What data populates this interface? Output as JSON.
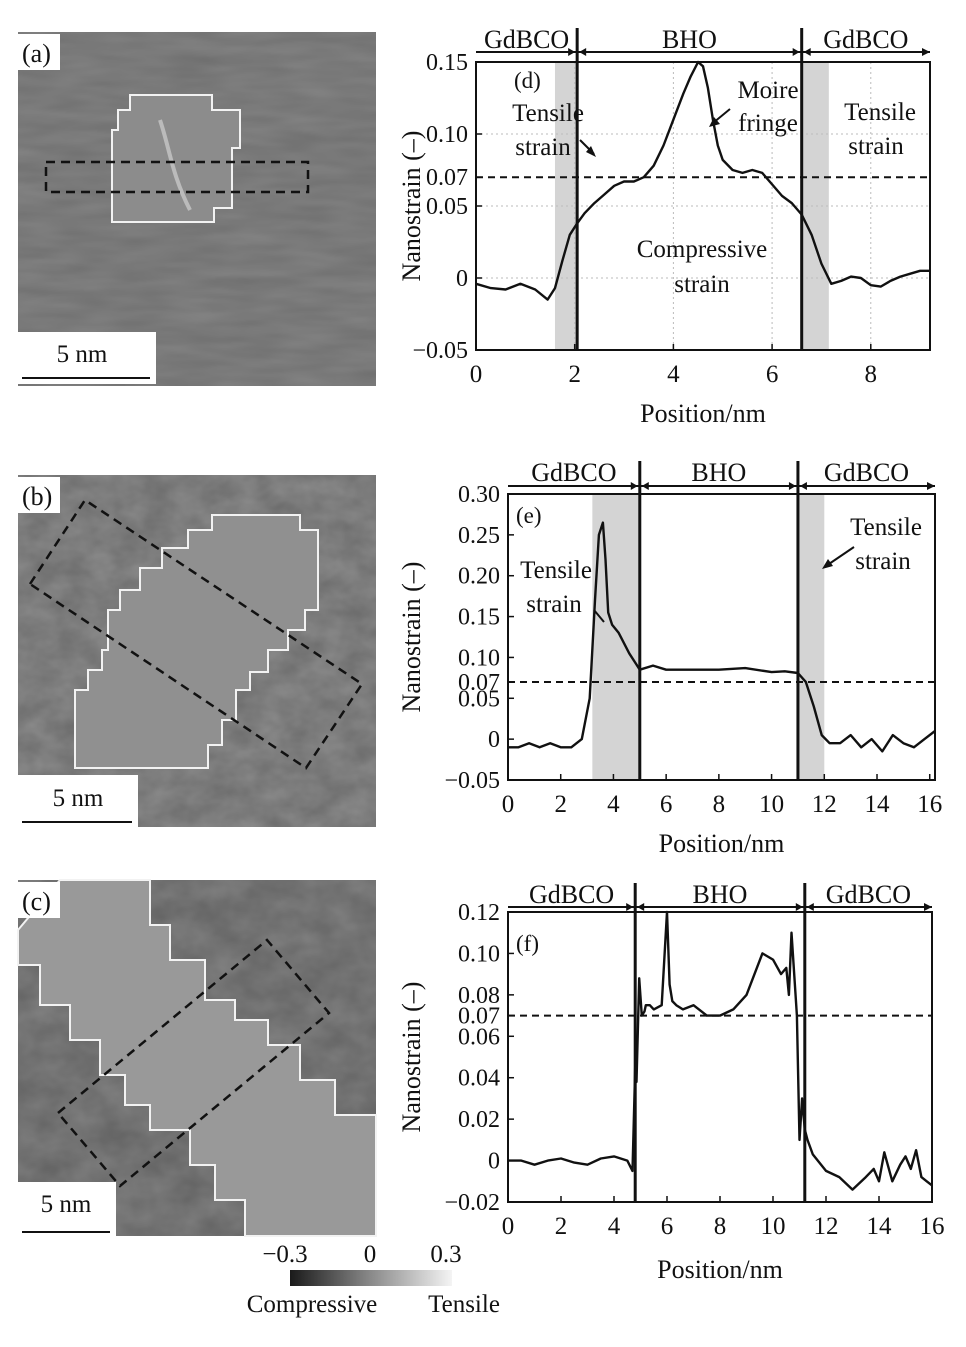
{
  "panel_labels": {
    "a": "(a)",
    "b": "(b)",
    "c": "(c)",
    "d": "(d)",
    "e": "(e)",
    "f": "(f)"
  },
  "scale_bar_label": "5 nm",
  "colorbar": {
    "ticks": [
      "−0.3",
      "0",
      "0.3"
    ],
    "left_label": "Compressive",
    "right_label": "Tensile"
  },
  "chart_data": [
    {
      "type": "line",
      "panel": "(d)",
      "xlabel": "Position/nm",
      "ylabel": "Nanostrain (–)",
      "xlim": [
        0,
        9.2
      ],
      "ylim": [
        -0.05,
        0.15
      ],
      "xticks": [
        0,
        2,
        4,
        6,
        8
      ],
      "yticks": [
        {
          "v": -0.05,
          "t": "−0.05"
        },
        {
          "v": 0,
          "t": "0"
        },
        {
          "v": 0.05,
          "t": "0.05"
        },
        {
          "v": 0.07,
          "t": "0.07"
        },
        {
          "v": 0.1,
          "t": "0.10"
        },
        {
          "v": 0.15,
          "t": "0.15"
        }
      ],
      "grid": true,
      "threshold": 0.07,
      "interfaces": [
        2.05,
        6.6
      ],
      "shaded": [
        [
          1.6,
          2.05
        ],
        [
          6.6,
          7.15
        ]
      ],
      "regions": [
        "GdBCO",
        "BHO",
        "GdBCO"
      ],
      "annotations": [
        "Tensile strain",
        "Moire fringe",
        "Tensile strain",
        "Compressive strain"
      ],
      "series": [
        {
          "x": [
            0,
            0.3,
            0.6,
            0.9,
            1.2,
            1.45,
            1.6,
            1.75,
            1.9,
            2.05,
            2.2,
            2.4,
            2.6,
            2.8,
            3.0,
            3.2,
            3.4,
            3.6,
            3.8,
            4.0,
            4.2,
            4.35,
            4.5,
            4.6,
            4.7,
            4.8,
            4.9,
            5.0,
            5.2,
            5.4,
            5.6,
            5.8,
            6.0,
            6.2,
            6.4,
            6.6,
            6.8,
            7.0,
            7.2,
            7.4,
            7.6,
            7.8,
            8.0,
            8.2,
            8.4,
            8.6,
            8.8,
            9.0,
            9.2
          ],
          "y": [
            -0.004,
            -0.007,
            -0.008,
            -0.004,
            -0.008,
            -0.015,
            -0.007,
            0.012,
            0.03,
            0.038,
            0.045,
            0.052,
            0.058,
            0.064,
            0.067,
            0.067,
            0.07,
            0.078,
            0.092,
            0.11,
            0.128,
            0.14,
            0.15,
            0.147,
            0.132,
            0.11,
            0.092,
            0.082,
            0.075,
            0.073,
            0.075,
            0.073,
            0.065,
            0.057,
            0.052,
            0.044,
            0.03,
            0.01,
            -0.004,
            -0.002,
            0.001,
            0.0,
            -0.005,
            -0.006,
            -0.002,
            0.001,
            0.003,
            0.005,
            0.005
          ]
        }
      ]
    },
    {
      "type": "line",
      "panel": "(e)",
      "xlabel": "Position/nm",
      "ylabel": "Nanostrain (–)",
      "xlim": [
        0,
        16.2
      ],
      "ylim": [
        -0.05,
        0.3
      ],
      "xticks": [
        0,
        2,
        4,
        6,
        8,
        10,
        12,
        14,
        16
      ],
      "yticks": [
        {
          "v": -0.05,
          "t": "−0.05"
        },
        {
          "v": 0,
          "t": "0"
        },
        {
          "v": 0.05,
          "t": "0.05"
        },
        {
          "v": 0.07,
          "t": "0.07"
        },
        {
          "v": 0.1,
          "t": "0.10"
        },
        {
          "v": 0.15,
          "t": "0.15"
        },
        {
          "v": 0.2,
          "t": "0.20"
        },
        {
          "v": 0.25,
          "t": "0.25"
        },
        {
          "v": 0.3,
          "t": "0.30"
        }
      ],
      "grid": false,
      "threshold": 0.07,
      "interfaces": [
        5.0,
        11.0
      ],
      "shaded": [
        [
          3.2,
          5.0
        ],
        [
          11.0,
          12.0
        ]
      ],
      "regions": [
        "GdBCO",
        "BHO",
        "GdBCO"
      ],
      "annotations": [
        "Tensile strain",
        "Tensile strain"
      ],
      "series": [
        {
          "x": [
            0,
            0.4,
            0.8,
            1.2,
            1.6,
            2.0,
            2.4,
            2.8,
            3.1,
            3.3,
            3.45,
            3.6,
            3.7,
            3.8,
            3.95,
            4.2,
            4.6,
            5.0,
            5.5,
            6.0,
            6.5,
            7.0,
            8.0,
            9.0,
            10.0,
            10.5,
            11.0,
            11.3,
            11.6,
            11.9,
            12.2,
            12.6,
            13.0,
            13.4,
            13.8,
            14.2,
            14.6,
            15.0,
            15.4,
            15.8,
            16.2
          ],
          "y": [
            -0.01,
            -0.01,
            -0.005,
            -0.01,
            -0.005,
            -0.01,
            -0.01,
            0.0,
            0.05,
            0.17,
            0.25,
            0.265,
            0.22,
            0.155,
            0.14,
            0.13,
            0.105,
            0.085,
            0.09,
            0.085,
            0.085,
            0.085,
            0.085,
            0.087,
            0.082,
            0.083,
            0.081,
            0.07,
            0.04,
            0.005,
            -0.005,
            -0.005,
            0.005,
            -0.01,
            0.0,
            -0.015,
            0.005,
            -0.005,
            -0.01,
            0.0,
            0.01
          ]
        }
      ]
    },
    {
      "type": "line",
      "panel": "(f)",
      "xlabel": "Position/nm",
      "ylabel": "Nanostrain (–)",
      "xlim": [
        0,
        16
      ],
      "ylim": [
        -0.02,
        0.12
      ],
      "xticks": [
        0,
        2,
        4,
        6,
        8,
        10,
        12,
        14,
        16
      ],
      "yticks": [
        {
          "v": -0.02,
          "t": "−0.02"
        },
        {
          "v": 0,
          "t": "0"
        },
        {
          "v": 0.02,
          "t": "0.02"
        },
        {
          "v": 0.04,
          "t": "0.04"
        },
        {
          "v": 0.06,
          "t": "0.06"
        },
        {
          "v": 0.07,
          "t": "0.07"
        },
        {
          "v": 0.08,
          "t": "0.08"
        },
        {
          "v": 0.1,
          "t": "0.10"
        },
        {
          "v": 0.12,
          "t": "0.12"
        }
      ],
      "grid": false,
      "threshold": 0.07,
      "interfaces": [
        4.8,
        11.2
      ],
      "shaded": [],
      "regions": [
        "GdBCO",
        "BHO",
        "GdBCO"
      ],
      "annotations": [],
      "series": [
        {
          "x": [
            0,
            0.5,
            1.0,
            1.5,
            2.0,
            2.5,
            3.0,
            3.5,
            4.0,
            4.5,
            4.7,
            4.8,
            4.85,
            4.95,
            5.05,
            5.15,
            5.2,
            5.35,
            5.5,
            5.8,
            6.0,
            6.1,
            6.2,
            6.35,
            6.6,
            7.0,
            7.5,
            8.0,
            8.5,
            9.0,
            9.3,
            9.6,
            10.0,
            10.3,
            10.5,
            10.6,
            10.7,
            10.8,
            10.9,
            11.0,
            11.1,
            11.2,
            11.3,
            11.5,
            12.0,
            12.5,
            13.0,
            13.5,
            13.8,
            14.0,
            14.2,
            14.5,
            14.8,
            15.0,
            15.2,
            15.4,
            15.6,
            15.8,
            16.0
          ],
          "y": [
            0.0,
            0.0,
            -0.002,
            0.0,
            0.001,
            -0.001,
            -0.002,
            0.001,
            0.002,
            0.0,
            -0.005,
            0.045,
            0.038,
            0.088,
            0.07,
            0.072,
            0.075,
            0.075,
            0.073,
            0.075,
            0.12,
            0.085,
            0.077,
            0.075,
            0.073,
            0.075,
            0.07,
            0.07,
            0.073,
            0.08,
            0.09,
            0.1,
            0.097,
            0.09,
            0.093,
            0.08,
            0.11,
            0.09,
            0.07,
            0.01,
            0.03,
            0.015,
            0.01,
            0.003,
            -0.005,
            -0.008,
            -0.014,
            -0.008,
            -0.004,
            -0.01,
            0.004,
            -0.01,
            -0.002,
            0.002,
            -0.004,
            0.005,
            -0.008,
            -0.01,
            -0.012
          ]
        }
      ]
    }
  ]
}
